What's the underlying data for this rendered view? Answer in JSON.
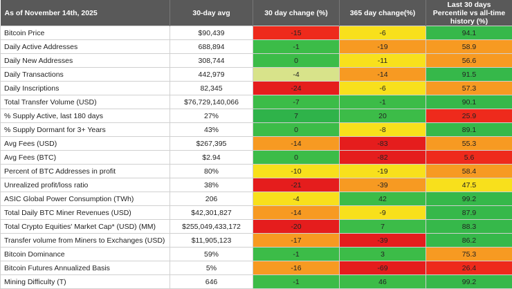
{
  "table": {
    "header": [
      "As of November 14th, 2025",
      "30-day avg",
      "30 day change (%)",
      "365 day change(%)",
      "Last 30 days Percentile vs all-time history (%)"
    ],
    "rows": [
      {
        "cells": [
          "Bitcoin Price",
          "$90,439",
          "-15",
          "-6",
          "94.1"
        ],
        "colors": [
          "#ee2a1c",
          "#f8e01c",
          "#36b84a"
        ]
      },
      {
        "cells": [
          "Daily Active Addresses",
          "688,894",
          "-1",
          "-19",
          "58.9"
        ],
        "colors": [
          "#3cbc48",
          "#f79a22",
          "#f79a22"
        ]
      },
      {
        "cells": [
          "Daily New Addresses",
          "308,744",
          "0",
          "-11",
          "56.6"
        ],
        "colors": [
          "#3cbc48",
          "#f8e01c",
          "#f79a22"
        ]
      },
      {
        "cells": [
          "Daily Transactions",
          "442,979",
          "-4",
          "-14",
          "91.5"
        ],
        "colors": [
          "#d8e38a",
          "#f79a22",
          "#36b84a"
        ]
      },
      {
        "cells": [
          "Daily Inscriptions",
          "82,345",
          "-24",
          "-6",
          "57.3"
        ],
        "colors": [
          "#e51d1d",
          "#f8e01c",
          "#f79a22"
        ]
      },
      {
        "cells": [
          "Total Transfer Volume (USD)",
          "$76,729,140,066",
          "-7",
          "-1",
          "90.1"
        ],
        "colors": [
          "#3cbc48",
          "#3cbc48",
          "#36b84a"
        ]
      },
      {
        "cells": [
          "% Supply Active, last 180 days",
          "27%",
          "7",
          "20",
          "25.9"
        ],
        "colors": [
          "#2fb34a",
          "#3cbc48",
          "#ee2a1c"
        ]
      },
      {
        "cells": [
          "% Supply Dormant for 3+ Years",
          "43%",
          "0",
          "-8",
          "89.1"
        ],
        "colors": [
          "#3cbc48",
          "#f8e01c",
          "#36b84a"
        ]
      },
      {
        "cells": [
          "Avg Fees (USD)",
          "$267,395",
          "-14",
          "-83",
          "55.3"
        ],
        "colors": [
          "#f79a22",
          "#e51d1d",
          "#f79a22"
        ]
      },
      {
        "cells": [
          "Avg Fees (BTC)",
          "$2.94",
          "0",
          "-82",
          "5.6"
        ],
        "colors": [
          "#3cbc48",
          "#e51d1d",
          "#ee2a1c"
        ]
      },
      {
        "cells": [
          "Percent of BTC Addresses in profit",
          "80%",
          "-10",
          "-19",
          "58.4"
        ],
        "colors": [
          "#f8e01c",
          "#f8e01c",
          "#f79a22"
        ]
      },
      {
        "cells": [
          "Unrealized profit/loss ratio",
          "38%",
          "-21",
          "-39",
          "47.5"
        ],
        "colors": [
          "#e51d1d",
          "#f79a22",
          "#f8e01c"
        ]
      },
      {
        "cells": [
          "ASIC Global Power Consumption (TWh)",
          "206",
          "-4",
          "42",
          "99.2"
        ],
        "colors": [
          "#f8e01c",
          "#3cbc48",
          "#36b84a"
        ]
      },
      {
        "cells": [
          "Total Daily BTC Miner Revenues (USD)",
          "$42,301,827",
          "-14",
          "-9",
          "87.9"
        ],
        "colors": [
          "#f79a22",
          "#f8e01c",
          "#36b84a"
        ]
      },
      {
        "cells": [
          "Total Crypto Equities' Market Cap* (USD) (MM)",
          "$255,049,433,172",
          "-20",
          "7",
          "88.3"
        ],
        "colors": [
          "#e51d1d",
          "#3cbc48",
          "#36b84a"
        ]
      },
      {
        "cells": [
          "Transfer volume from Miners to Exchanges (USD)",
          "$11,905,123",
          "-17",
          "-39",
          "86.2"
        ],
        "colors": [
          "#f79a22",
          "#e51d1d",
          "#36b84a"
        ]
      },
      {
        "cells": [
          "Bitcoin Dominance",
          "59%",
          "-1",
          "3",
          "75.3"
        ],
        "colors": [
          "#3cbc48",
          "#3cbc48",
          "#f79a22"
        ]
      },
      {
        "cells": [
          "Bitcoin Futures Annualized Basis",
          "5%",
          "-16",
          "-69",
          "26.4"
        ],
        "colors": [
          "#f79a22",
          "#e51d1d",
          "#ee2a1c"
        ]
      },
      {
        "cells": [
          "Mining Difficulty (T)",
          "646",
          "-1",
          "46",
          "99.2"
        ],
        "colors": [
          "#3cbc48",
          "#3cbc48",
          "#36b84a"
        ]
      }
    ]
  }
}
